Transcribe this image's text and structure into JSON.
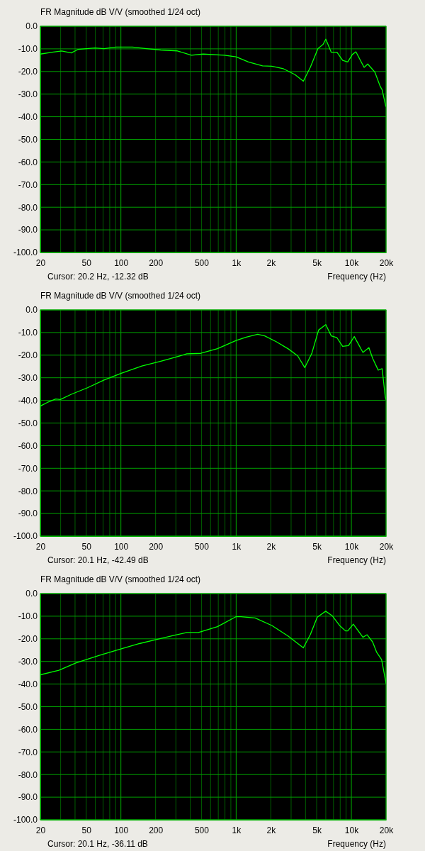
{
  "chart_data": [
    {
      "type": "line",
      "title": "FR Magnitude dB V/V (smoothed 1/24 oct)",
      "xlabel": "Frequency (Hz)",
      "annotations": [
        "Cursor: 20.2 Hz, -12.32 dB"
      ],
      "log": "x",
      "grid": true,
      "xlim": [
        20,
        20000
      ],
      "ylim": [
        -100,
        0
      ],
      "xticks": [
        20,
        {
          "value": 30,
          "label": null
        },
        {
          "value": 40,
          "label": null
        },
        50,
        {
          "value": 60,
          "label": null
        },
        {
          "value": 70,
          "label": null
        },
        {
          "value": 80,
          "label": null
        },
        {
          "value": 90,
          "label": null
        },
        100,
        200,
        {
          "value": 300,
          "label": null
        },
        {
          "value": 400,
          "label": null
        },
        500,
        {
          "value": 600,
          "label": null
        },
        {
          "value": 700,
          "label": null
        },
        {
          "value": 800,
          "label": null
        },
        {
          "value": 900,
          "label": null
        },
        {
          "value": 1000,
          "label": "1k"
        },
        {
          "value": 2000,
          "label": "2k"
        },
        {
          "value": 3000,
          "label": null
        },
        {
          "value": 4000,
          "label": null
        },
        {
          "value": 5000,
          "label": "5k"
        },
        {
          "value": 6000,
          "label": null
        },
        {
          "value": 7000,
          "label": null
        },
        {
          "value": 8000,
          "label": null
        },
        {
          "value": 9000,
          "label": null
        },
        {
          "value": 10000,
          "label": "10k"
        },
        {
          "value": 20000,
          "label": "20k"
        }
      ],
      "yticks": [
        {
          "value": 0,
          "label": "0.0"
        },
        {
          "value": -10,
          "label": "-10.0"
        },
        {
          "value": -20,
          "label": "-20.0"
        },
        {
          "value": -30,
          "label": "-30.0"
        },
        {
          "value": -40,
          "label": "-40.0"
        },
        {
          "value": -50,
          "label": "-50.0"
        },
        {
          "value": -60,
          "label": "-60.0"
        },
        {
          "value": -70,
          "label": "-70.0"
        },
        {
          "value": -80,
          "label": "-80.0"
        },
        {
          "value": -90,
          "label": "-90.0"
        },
        {
          "value": -100,
          "label": "-100.0"
        }
      ],
      "series": [
        {
          "color": "#00ff00",
          "x": [
            20,
            25.3,
            30.6,
            37.1,
            42.6,
            59.4,
            71.4,
            90.6,
            126,
            167,
            222,
            309,
            409,
            517,
            789,
            1000,
            1278,
            1695,
            2038,
            2573,
            3245,
            3830,
            4401,
            5130,
            5670,
            6000,
            6690,
            7500,
            8400,
            9300,
            10200,
            10950,
            12900,
            13870,
            16000,
            17800,
            18500,
            19900
          ],
          "values": [
            -12.3,
            -11.5,
            -10.9,
            -11.8,
            -10.2,
            -9.6,
            -9.9,
            -9.2,
            -9.2,
            -9.9,
            -10.5,
            -10.9,
            -12.8,
            -12.3,
            -12.8,
            -13.5,
            -15.8,
            -17.5,
            -17.7,
            -18.8,
            -21.4,
            -24.3,
            -18.2,
            -9.9,
            -8.1,
            -5.7,
            -11.5,
            -11.5,
            -15.1,
            -15.8,
            -12.5,
            -11.3,
            -18.2,
            -16.7,
            -20.3,
            -26.6,
            -28.1,
            -35.4
          ]
        }
      ]
    },
    {
      "type": "line",
      "title": "FR Magnitude dB V/V (smoothed 1/24 oct)",
      "xlabel": "Frequency (Hz)",
      "annotations": [
        "Cursor: 20.1 Hz, -42.49 dB"
      ],
      "log": "x",
      "grid": true,
      "xlim": [
        20,
        20000
      ],
      "ylim": [
        -100,
        0
      ],
      "xticks": [
        20,
        {
          "value": 30,
          "label": null
        },
        {
          "value": 40,
          "label": null
        },
        50,
        {
          "value": 60,
          "label": null
        },
        {
          "value": 70,
          "label": null
        },
        {
          "value": 80,
          "label": null
        },
        {
          "value": 90,
          "label": null
        },
        100,
        200,
        {
          "value": 300,
          "label": null
        },
        {
          "value": 400,
          "label": null
        },
        500,
        {
          "value": 600,
          "label": null
        },
        {
          "value": 700,
          "label": null
        },
        {
          "value": 800,
          "label": null
        },
        {
          "value": 900,
          "label": null
        },
        {
          "value": 1000,
          "label": "1k"
        },
        {
          "value": 2000,
          "label": "2k"
        },
        {
          "value": 3000,
          "label": null
        },
        {
          "value": 4000,
          "label": null
        },
        {
          "value": 5000,
          "label": "5k"
        },
        {
          "value": 6000,
          "label": null
        },
        {
          "value": 7000,
          "label": null
        },
        {
          "value": 8000,
          "label": null
        },
        {
          "value": 9000,
          "label": null
        },
        {
          "value": 10000,
          "label": "10k"
        },
        {
          "value": 20000,
          "label": "20k"
        }
      ],
      "yticks": [
        {
          "value": 0,
          "label": "0.0"
        },
        {
          "value": -10,
          "label": "-10.0"
        },
        {
          "value": -20,
          "label": "-20.0"
        },
        {
          "value": -30,
          "label": "-30.0"
        },
        {
          "value": -40,
          "label": "-40.0"
        },
        {
          "value": -50,
          "label": "-50.0"
        },
        {
          "value": -60,
          "label": "-60.0"
        },
        {
          "value": -70,
          "label": "-70.0"
        },
        {
          "value": -80,
          "label": "-80.0"
        },
        {
          "value": -90,
          "label": "-90.0"
        },
        {
          "value": -100,
          "label": "-100.0"
        }
      ],
      "series": [
        {
          "color": "#00ff00",
          "x": [
            20,
            23,
            27.2,
            29.8,
            37.1,
            51.3,
            71.4,
            99.7,
            152,
            222,
            294,
            373,
            494,
            689,
            1000,
            1226,
            1538,
            1770,
            2240,
            2830,
            3420,
            3940,
            4530,
            5200,
            6000,
            6690,
            7500,
            8400,
            9440,
            10600,
            12600,
            14200,
            15300,
            17100,
            18500,
            19700,
            20000
          ],
          "values": [
            -42.5,
            -40.9,
            -39.4,
            -39.6,
            -37.3,
            -34.4,
            -31.0,
            -28.1,
            -24.8,
            -22.7,
            -21.0,
            -19.4,
            -19.2,
            -17.1,
            -13.5,
            -12.0,
            -10.8,
            -11.5,
            -14.1,
            -17.2,
            -20.3,
            -25.5,
            -19.3,
            -8.9,
            -6.5,
            -11.5,
            -12.3,
            -16.1,
            -15.8,
            -11.8,
            -18.8,
            -16.7,
            -21.4,
            -26.6,
            -26.0,
            -38.5,
            -39.6
          ]
        }
      ]
    },
    {
      "type": "line",
      "title": "FR Magnitude dB V/V (smoothed 1/24 oct)",
      "xlabel": "Frequency (Hz)",
      "annotations": [
        "Cursor: 20.1 Hz, -36.11 dB"
      ],
      "log": "x",
      "grid": true,
      "xlim": [
        20,
        20000
      ],
      "ylim": [
        -100,
        0
      ],
      "xticks": [
        20,
        {
          "value": 30,
          "label": null
        },
        {
          "value": 40,
          "label": null
        },
        50,
        {
          "value": 60,
          "label": null
        },
        {
          "value": 70,
          "label": null
        },
        {
          "value": 80,
          "label": null
        },
        {
          "value": 90,
          "label": null
        },
        100,
        200,
        {
          "value": 300,
          "label": null
        },
        {
          "value": 400,
          "label": null
        },
        500,
        {
          "value": 600,
          "label": null
        },
        {
          "value": 700,
          "label": null
        },
        {
          "value": 800,
          "label": null
        },
        {
          "value": 900,
          "label": null
        },
        {
          "value": 1000,
          "label": "1k"
        },
        {
          "value": 2000,
          "label": "2k"
        },
        {
          "value": 3000,
          "label": null
        },
        {
          "value": 4000,
          "label": null
        },
        {
          "value": 5000,
          "label": "5k"
        },
        {
          "value": 6000,
          "label": null
        },
        {
          "value": 7000,
          "label": null
        },
        {
          "value": 8000,
          "label": null
        },
        {
          "value": 9000,
          "label": null
        },
        {
          "value": 10000,
          "label": "10k"
        },
        {
          "value": 20000,
          "label": "20k"
        }
      ],
      "yticks": [
        {
          "value": 0,
          "label": "0.0"
        },
        {
          "value": -10,
          "label": "-10.0"
        },
        {
          "value": -20,
          "label": "-20.0"
        },
        {
          "value": -30,
          "label": "-30.0"
        },
        {
          "value": -40,
          "label": "-40.0"
        },
        {
          "value": -50,
          "label": "-50.0"
        },
        {
          "value": -60,
          "label": "-60.0"
        },
        {
          "value": -70,
          "label": "-70.0"
        },
        {
          "value": -80,
          "label": "-80.0"
        },
        {
          "value": -90,
          "label": "-90.0"
        },
        {
          "value": -100,
          "label": "-100.0"
        }
      ],
      "series": [
        {
          "color": "#00ff00",
          "x": [
            20,
            29,
            40.6,
            65,
            99.7,
            145,
            202,
            294,
            373,
            471,
            689,
            1000,
            1100,
            1460,
            2040,
            2830,
            3830,
            4400,
            5060,
            5990,
            6850,
            7900,
            8900,
            9300,
            10400,
            12600,
            13700,
            15300,
            16600,
            18300,
            20000
          ],
          "values": [
            -35.9,
            -33.9,
            -30.7,
            -27.3,
            -24.5,
            -22.1,
            -20.3,
            -18.4,
            -17.2,
            -17.2,
            -14.6,
            -10.2,
            -10.2,
            -10.8,
            -14.1,
            -18.8,
            -24.0,
            -18.2,
            -10.4,
            -7.8,
            -9.9,
            -14.1,
            -16.5,
            -16.5,
            -13.5,
            -19.3,
            -18.2,
            -21.4,
            -26.0,
            -29.2,
            -39.6
          ]
        }
      ]
    }
  ]
}
